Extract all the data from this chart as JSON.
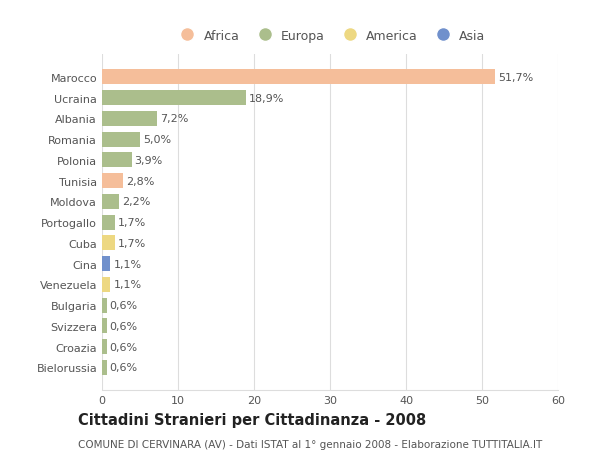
{
  "categories": [
    "Marocco",
    "Ucraina",
    "Albania",
    "Romania",
    "Polonia",
    "Tunisia",
    "Moldova",
    "Portogallo",
    "Cuba",
    "Cina",
    "Venezuela",
    "Bulgaria",
    "Svizzera",
    "Croazia",
    "Bielorussia"
  ],
  "values": [
    51.7,
    18.9,
    7.2,
    5.0,
    3.9,
    2.8,
    2.2,
    1.7,
    1.7,
    1.1,
    1.1,
    0.6,
    0.6,
    0.6,
    0.6
  ],
  "labels": [
    "51,7%",
    "18,9%",
    "7,2%",
    "5,0%",
    "3,9%",
    "2,8%",
    "2,2%",
    "1,7%",
    "1,7%",
    "1,1%",
    "1,1%",
    "0,6%",
    "0,6%",
    "0,6%",
    "0,6%"
  ],
  "continents": [
    "Africa",
    "Europa",
    "Europa",
    "Europa",
    "Europa",
    "Africa",
    "Europa",
    "Europa",
    "America",
    "Asia",
    "America",
    "Europa",
    "Europa",
    "Europa",
    "Europa"
  ],
  "colors": {
    "Africa": "#F5BE9A",
    "Europa": "#ABBE8C",
    "America": "#EDD882",
    "Asia": "#7090CC"
  },
  "xlim": [
    0,
    60
  ],
  "xticks": [
    0,
    10,
    20,
    30,
    40,
    50,
    60
  ],
  "title": "Cittadini Stranieri per Cittadinanza - 2008",
  "subtitle": "COMUNE DI CERVINARA (AV) - Dati ISTAT al 1° gennaio 2008 - Elaborazione TUTTITALIA.IT",
  "background_color": "#FFFFFF",
  "grid_color": "#DDDDDD",
  "bar_height": 0.72,
  "label_fontsize": 8,
  "title_fontsize": 10.5,
  "subtitle_fontsize": 7.5,
  "tick_fontsize": 8
}
